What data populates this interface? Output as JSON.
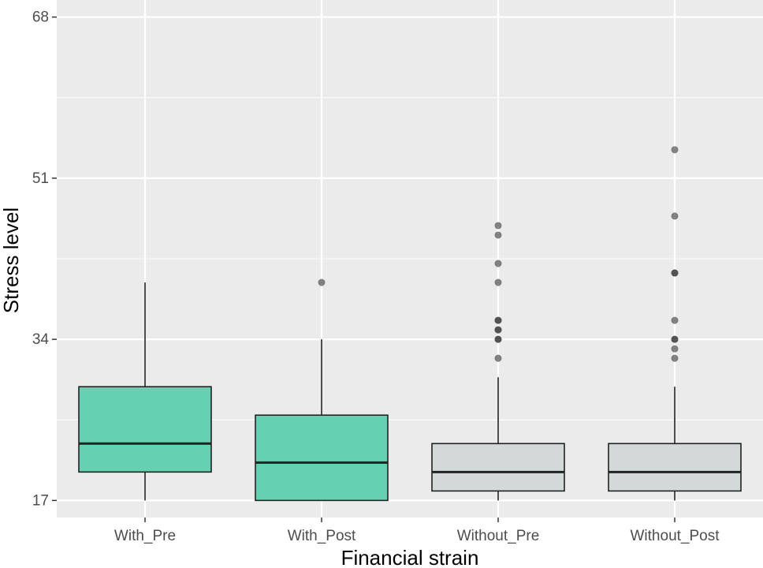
{
  "chart_data": {
    "type": "boxplot",
    "xlabel": "Financial strain",
    "ylabel": "Stress level",
    "ylim": [
      15.2,
      69.8
    ],
    "yticks": [
      17,
      34,
      51,
      68
    ],
    "grid": true,
    "categories": [
      "With_Pre",
      "With_Post",
      "Without_Pre",
      "Without_Post"
    ],
    "boxes": [
      {
        "category": "With_Pre",
        "min": 17,
        "q1": 20,
        "median": 23,
        "q3": 29,
        "max": 40,
        "outliers": [],
        "color": "#66d1b1"
      },
      {
        "category": "With_Post",
        "min": 17,
        "q1": 17,
        "median": 21,
        "q3": 26,
        "max": 34,
        "outliers": [
          40
        ],
        "color": "#66d1b1"
      },
      {
        "category": "Without_Pre",
        "min": 17,
        "q1": 18,
        "median": 20,
        "q3": 23,
        "max": 30,
        "outliers": [
          32,
          34,
          34,
          35,
          35,
          36,
          36,
          40,
          42,
          45,
          46
        ],
        "color": "#d3d8d9"
      },
      {
        "category": "Without_Post",
        "min": 17,
        "q1": 18,
        "median": 20,
        "q3": 23,
        "max": 29,
        "outliers": [
          32,
          33,
          34,
          34,
          36,
          41,
          41,
          47,
          54
        ],
        "color": "#d3d8d9"
      }
    ],
    "colors": {
      "panel": "#ebebeb",
      "grid": "#ffffff",
      "box_stroke": "#222222",
      "outlier": "#333333"
    }
  }
}
